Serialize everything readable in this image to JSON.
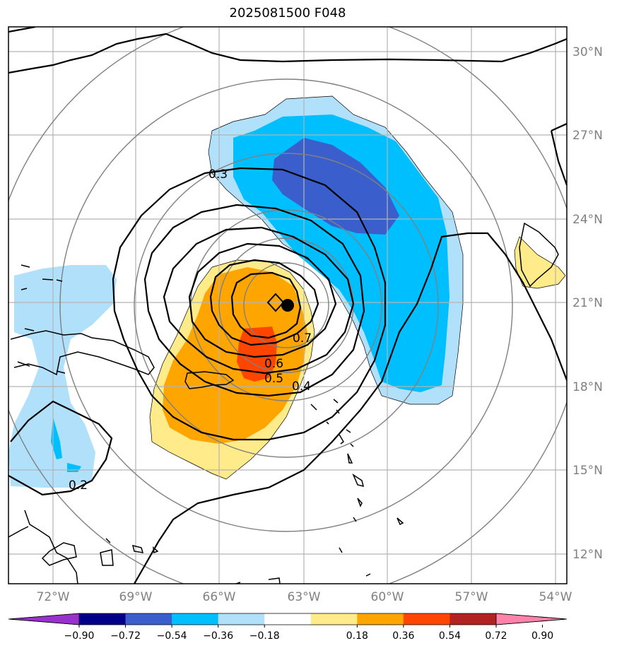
{
  "title": "2025081500 F048",
  "map": {
    "lon_labels": [
      "72°W",
      "69°W",
      "66°W",
      "63°W",
      "60°W",
      "57°W",
      "54°W"
    ],
    "lat_labels": [
      "30°N",
      "27°N",
      "24°N",
      "21°N",
      "18°N",
      "15°N",
      "12°N"
    ],
    "contour_labels": [
      "0.3",
      "0.7",
      "0.6",
      "0.5",
      "0.4",
      "0.2"
    ],
    "storm_markers": [
      "storm-center-dot",
      "forecast-position-diamond"
    ]
  },
  "colorbar": {
    "ticks": [
      "−0.90",
      "−0.72",
      "−0.54",
      "−0.36",
      "−0.18",
      "0.18",
      "0.36",
      "0.54",
      "0.72",
      "0.90"
    ],
    "colors": [
      "#9932cc",
      "#00008b",
      "#3a5fcd",
      "#00bfff",
      "#b0e0fa",
      "#ffffff",
      "#ffeb8a",
      "#ffa500",
      "#ff4500",
      "#b22222",
      "#ff82ab"
    ]
  }
}
